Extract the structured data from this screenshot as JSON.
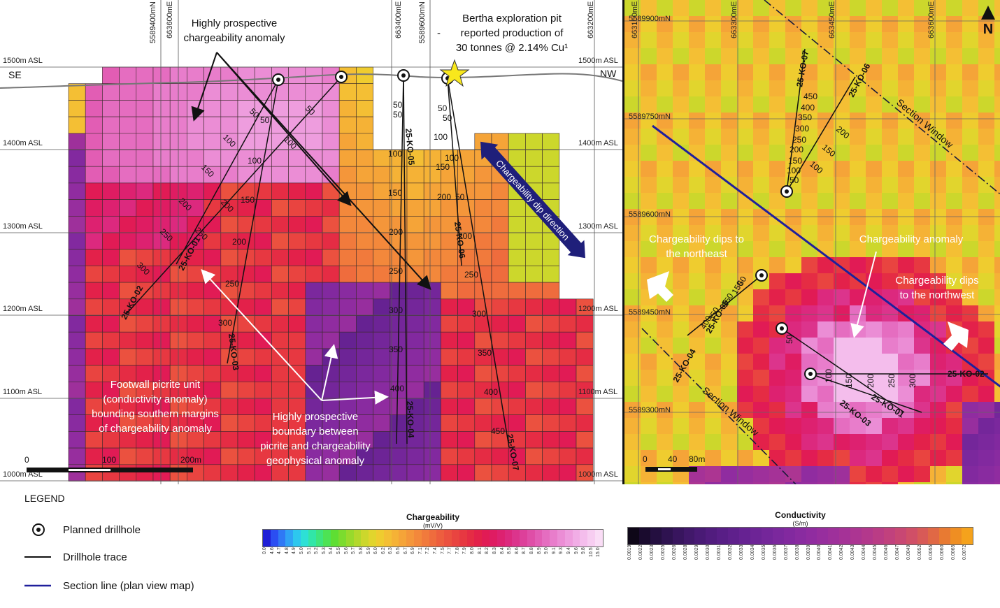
{
  "section_view": {
    "orientation_left": "SE",
    "orientation_right": "NW",
    "elevations": [
      "1500m ASL",
      "1400m ASL",
      "1300m ASL",
      "1200m ASL",
      "1100m ASL",
      "1000m ASL"
    ],
    "eastings": [
      "5589400mN",
      "663600mE",
      "663400mE",
      "5589600mN",
      "663200mE"
    ],
    "anno_anomaly": [
      "Highly prospective",
      "chargeability anomaly"
    ],
    "anno_bertha": [
      "Bertha exploration pit",
      "reported production of",
      "30 tonnes @ 2.14% Cu¹"
    ],
    "anno_bertha_dash": "-",
    "anno_dip": "Chargeability dip direction",
    "anno_footwall": [
      "Footwall picrite unit",
      "(conductivity anomaly)",
      "bounding southern margins",
      "of chargeability anomaly"
    ],
    "anno_boundary": [
      "Highly prospective",
      "boundary between",
      "picrite and chargeability",
      "geophysical anomaly"
    ],
    "scale": {
      "zero": "0",
      "mid": "100",
      "end": "200m"
    },
    "drillholes": {
      "ko02": "25-KO-02",
      "ko01": "25-KO-01",
      "ko03": "25-KO-03",
      "ko05": "25-KO-05",
      "ko04": "25-KO-04",
      "ko06": "25-KO-06",
      "ko07": "25-KO-07"
    },
    "depths": {
      "d50": "50",
      "d100": "100",
      "d150": "150",
      "d200": "200",
      "d250": "250",
      "d300": "300",
      "d350": "350",
      "d400": "400",
      "d450": "450"
    }
  },
  "plan_view": {
    "northings": [
      "5589900mN",
      "5589750mN",
      "5589600mN",
      "5589450mN",
      "5589300mN"
    ],
    "eastings": [
      "663150mE",
      "663300mE",
      "663450mE",
      "663600mE"
    ],
    "anno_dips_ne": [
      "Chargeability dips to",
      "the northeast"
    ],
    "anno_anomaly": "Chargeability anomaly",
    "anno_dips_nw": [
      "Chargeability dips",
      "to the northwest"
    ],
    "section_window": "Section Window",
    "north": "N",
    "scale": {
      "zero": "0",
      "mid": "40",
      "end": "80m"
    },
    "drillholes": {
      "ko07": "25-KO-07",
      "ko06": "25-KO-06",
      "ko05": "25-KO-05",
      "ko04": "25-KO-04",
      "ko02": "25-KO-02",
      "ko01": "25-KO-01",
      "ko03": "25-KO-03"
    },
    "depths": {
      "d50": "50",
      "d100": "100",
      "d150": "150",
      "d200": "200",
      "d250": "250",
      "d300": "300",
      "d350": "350",
      "d400": "400",
      "d450": "450"
    }
  },
  "legend": {
    "title": "LEGEND",
    "planned": "Planned drillhole",
    "trace": "Drillhole trace",
    "section_line": "Section line (plan view map)",
    "chargeability": {
      "title": "Chargeability",
      "unit": "(mV/V)",
      "ticks": [
        "0.0",
        "4.6",
        "4.7",
        "4.8",
        "4.9",
        "5.0",
        "5.1",
        "5.2",
        "5.3",
        "5.4",
        "5.5",
        "5.6",
        "5.7",
        "5.8",
        "5.9",
        "6.0",
        "6.2",
        "6.3",
        "6.5",
        "6.7",
        "6.9",
        "7.1",
        "7.2",
        "7.4",
        "7.5",
        "7.7",
        "7.8",
        "7.9",
        "8.0",
        "8.1",
        "8.2",
        "8.3",
        "8.4",
        "8.5",
        "8.6",
        "8.7",
        "8.8",
        "8.9",
        "9.0",
        "9.1",
        "9.3",
        "9.4",
        "9.6",
        "9.8",
        "10.5",
        "15.0"
      ],
      "colors": [
        "#1f1fd6",
        "#2b4ef2",
        "#2f78f5",
        "#2fa2f5",
        "#2dc7ee",
        "#2de0d6",
        "#31e6a8",
        "#3ee57c",
        "#4de354",
        "#5ede33",
        "#7bdc2e",
        "#98da2c",
        "#b3d82c",
        "#ccd72c",
        "#e1d52d",
        "#efcc2f",
        "#f4bf34",
        "#f5b236",
        "#f5a438",
        "#f4963a",
        "#f3883b",
        "#f17a3c",
        "#ef6c3d",
        "#ed5e3e",
        "#eb513f",
        "#e94440",
        "#e73841",
        "#e52c44",
        "#e3214a",
        "#e11b55",
        "#df1c62",
        "#dd2170",
        "#dc297e",
        "#dc348c",
        "#dd409a",
        "#df4ea7",
        "#e25db4",
        "#e56dc0",
        "#e87dcb",
        "#eb8dd5",
        "#ee9dde",
        "#f1ade6",
        "#f4bdec",
        "#f7cdf1",
        "#faddf6"
      ]
    },
    "conductivity": {
      "title": "Conductivity",
      "unit": "(S/m)",
      "ticks": [
        "0.0019",
        "0.0022",
        "0.0023",
        "0.0025",
        "0.0026",
        "0.0028",
        "0.0029",
        "0.0030",
        "0.0031",
        "0.0032",
        "0.0033",
        "0.0034",
        "0.0035",
        "0.0036",
        "0.0037",
        "0.0038",
        "0.0039",
        "0.0040",
        "0.0041",
        "0.0042",
        "0.0043",
        "0.0044",
        "0.0045",
        "0.0046",
        "0.0047",
        "0.0049",
        "0.0052",
        "0.0055",
        "0.0060",
        "0.0065",
        "0.0072"
      ],
      "colors": [
        "#0e0718",
        "#1a0b2e",
        "#240f40",
        "#2e1250",
        "#38155e",
        "#41186a",
        "#491a75",
        "#511c7e",
        "#581e86",
        "#5f208c",
        "#662292",
        "#6d2496",
        "#74269a",
        "#7b289d",
        "#82299f",
        "#892ba0",
        "#902ca0",
        "#972e9e",
        "#9e309b",
        "#a53297",
        "#ac3592",
        "#b3388c",
        "#ba3c85",
        "#c1417d",
        "#c84773",
        "#d04f67",
        "#d85a57",
        "#e06845",
        "#e87a32",
        "#ef8e22",
        "#f5a21c"
      ]
    }
  }
}
